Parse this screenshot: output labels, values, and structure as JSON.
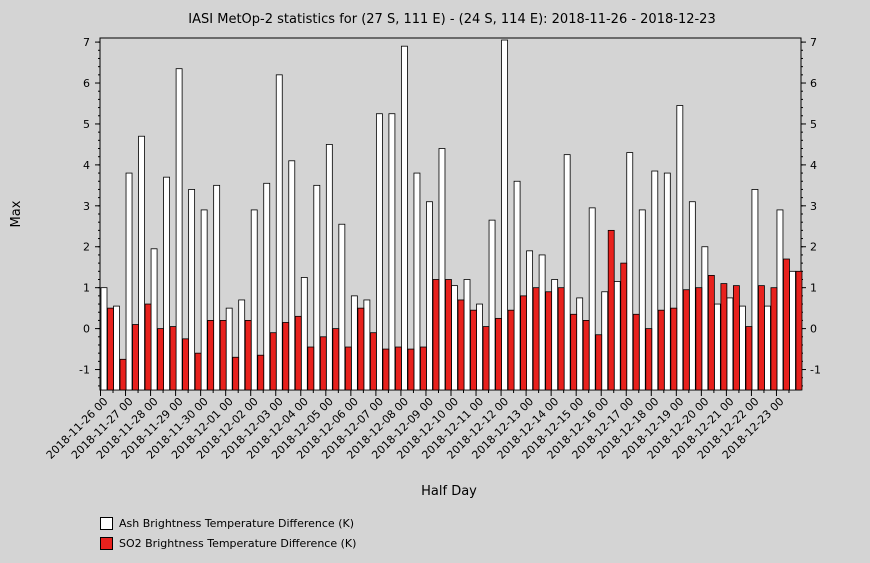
{
  "chart_data": {
    "type": "bar",
    "title": "IASI MetOp-2 statistics for (27 S, 111 E) - (24 S, 114 E): 2018-11-26 - 2018-12-23",
    "xlabel": "Half Day",
    "ylabel": "Max",
    "ylim": [
      -1.5,
      7.1
    ],
    "yticks": [
      -1,
      0,
      1,
      2,
      3,
      4,
      5,
      6,
      7
    ],
    "ytick_labels": [
      "-1",
      "0",
      "1",
      "2",
      "3",
      "4",
      "5",
      "6",
      "7"
    ],
    "xtick_labels": [
      "2018-11-26 00",
      "2018-11-27 00",
      "2018-11-28 00",
      "2018-11-29 00",
      "2018-11-30 00",
      "2018-12-01 00",
      "2018-12-02 00",
      "2018-12-03 00",
      "2018-12-04 00",
      "2018-12-05 00",
      "2018-12-06 00",
      "2018-12-07 00",
      "2018-12-08 00",
      "2018-12-09 00",
      "2018-12-10 00",
      "2018-12-11 00",
      "2018-12-12 00",
      "2018-12-13 00",
      "2018-12-14 00",
      "2018-12-15 00",
      "2018-12-16 00",
      "2018-12-17 00",
      "2018-12-18 00",
      "2018-12-19 00",
      "2018-12-20 00",
      "2018-12-21 00",
      "2018-12-22 00",
      "2018-12-23 00"
    ],
    "legend_position": "bottom-left",
    "series": [
      {
        "name": "Ash Brightness Temperature Difference (K)",
        "color": "#ffffff",
        "values": [
          1.0,
          0.55,
          3.8,
          4.7,
          1.95,
          3.7,
          6.35,
          3.4,
          2.9,
          3.5,
          0.5,
          0.7,
          2.9,
          3.55,
          6.2,
          4.1,
          1.25,
          3.5,
          4.5,
          2.55,
          0.8,
          0.7,
          5.25,
          5.25,
          6.9,
          3.8,
          3.1,
          4.4,
          1.05,
          1.2,
          0.6,
          2.65,
          7.05,
          3.6,
          1.9,
          1.8,
          1.2,
          4.25,
          0.75,
          2.95,
          0.9,
          1.15,
          4.3,
          2.9,
          3.85,
          3.8,
          5.45,
          3.1,
          2.0,
          0.6,
          0.75,
          0.55,
          3.4,
          0.55,
          2.9,
          1.4
        ]
      },
      {
        "name": "SO2 Brightness Temperature Difference (K)",
        "color": "#e8211d",
        "values": [
          0.5,
          -0.75,
          0.1,
          0.6,
          0.0,
          0.05,
          -0.25,
          -0.6,
          0.2,
          0.2,
          -0.7,
          0.2,
          -0.65,
          -0.1,
          0.15,
          0.3,
          -0.45,
          -0.2,
          0.0,
          -0.45,
          0.5,
          -0.1,
          -0.5,
          -0.45,
          -0.5,
          -0.45,
          1.2,
          1.2,
          0.7,
          0.45,
          0.05,
          0.25,
          0.45,
          0.8,
          1.0,
          0.9,
          1.0,
          0.35,
          0.2,
          -0.15,
          2.4,
          1.6,
          0.35,
          0.0,
          0.45,
          0.5,
          0.95,
          1.0,
          1.3,
          1.1,
          1.05,
          0.05,
          1.05,
          1.0,
          1.7,
          1.4
        ]
      }
    ]
  }
}
